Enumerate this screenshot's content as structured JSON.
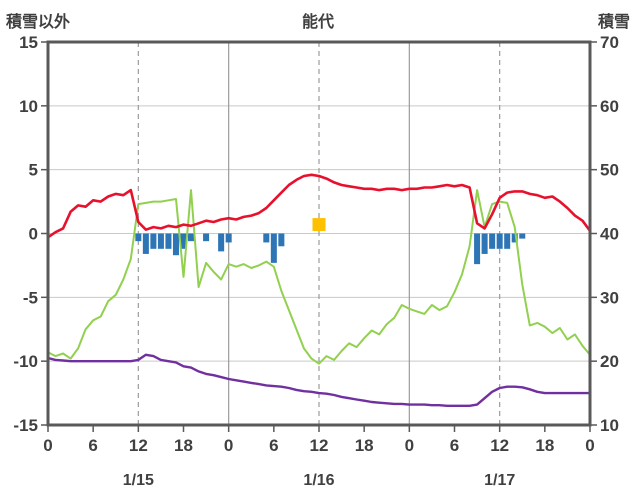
{
  "header": {
    "left_label": "積雪以外",
    "title": "能代",
    "right_label": "積雪"
  },
  "chart_data": {
    "type": "line+bar",
    "title": "能代",
    "left_axis": {
      "label": "積雪以外",
      "min": -15,
      "max": 15,
      "ticks": [
        15,
        10,
        5,
        0,
        -5,
        -10,
        -15
      ]
    },
    "right_axis": {
      "label": "積雪",
      "min": 10,
      "max": 70,
      "ticks": [
        70,
        60,
        50,
        40,
        30,
        20,
        10
      ]
    },
    "x_axis": {
      "min": 0,
      "max": 72,
      "tick_hours": [
        0,
        6,
        12,
        18,
        24,
        30,
        36,
        42,
        48,
        54,
        60,
        66,
        72
      ],
      "tick_labels": [
        "0",
        "6",
        "12",
        "18",
        "0",
        "6",
        "12",
        "18",
        "0",
        "6",
        "12",
        "18",
        "0"
      ],
      "grid_dashed_hours": [
        12,
        36,
        60
      ],
      "grid_solid_hours": [
        24,
        48
      ],
      "date_labels": [
        {
          "label": "1/15",
          "hour": 12
        },
        {
          "label": "1/16",
          "hour": 36
        },
        {
          "label": "1/17",
          "hour": 60
        }
      ]
    },
    "style": {
      "text_color": "#404040",
      "grid_color": "#c9c9c9",
      "vgrid_color": "#9b9b9b",
      "border_color": "#595959",
      "background": "#ffffff"
    },
    "series": [
      {
        "name": "red-line",
        "color": "#e8112d",
        "axis": "left",
        "width": 2.6,
        "x_step": 1,
        "values": [
          -0.3,
          0.1,
          0.4,
          1.7,
          2.2,
          2.1,
          2.6,
          2.5,
          2.9,
          3.1,
          3.0,
          3.4,
          0.9,
          0.3,
          0.5,
          0.4,
          0.6,
          0.5,
          0.7,
          0.6,
          0.8,
          1.0,
          0.9,
          1.1,
          1.2,
          1.1,
          1.3,
          1.4,
          1.6,
          2.0,
          2.6,
          3.2,
          3.8,
          4.2,
          4.5,
          4.6,
          4.5,
          4.3,
          4.0,
          3.8,
          3.7,
          3.6,
          3.5,
          3.5,
          3.4,
          3.5,
          3.5,
          3.4,
          3.5,
          3.5,
          3.6,
          3.6,
          3.7,
          3.8,
          3.7,
          3.8,
          3.6,
          0.8,
          0.4,
          1.5,
          2.8,
          3.2,
          3.3,
          3.3,
          3.1,
          3.0,
          2.8,
          2.9,
          2.5,
          2.0,
          1.4,
          1.0,
          0.2
        ]
      },
      {
        "name": "green-line",
        "color": "#92d050",
        "axis": "left",
        "width": 2,
        "x_step": 1,
        "values": [
          -9.3,
          -9.6,
          -9.4,
          -9.8,
          -9.0,
          -7.5,
          -6.8,
          -6.5,
          -5.3,
          -4.8,
          -3.6,
          -2.0,
          2.3,
          2.4,
          2.5,
          2.5,
          2.6,
          2.7,
          -3.4,
          3.4,
          -4.2,
          -2.3,
          -3.0,
          -3.6,
          -2.4,
          -2.6,
          -2.4,
          -2.7,
          -2.5,
          -2.2,
          -2.6,
          -4.5,
          -6.0,
          -7.5,
          -9.0,
          -9.8,
          -10.2,
          -9.6,
          -9.9,
          -9.2,
          -8.6,
          -8.9,
          -8.2,
          -7.6,
          -7.9,
          -7.1,
          -6.6,
          -5.6,
          -5.9,
          -6.1,
          -6.3,
          -5.6,
          -6.0,
          -5.7,
          -4.6,
          -3.2,
          -1.0,
          3.4,
          0.5,
          2.3,
          2.5,
          2.4,
          0.5,
          -4.0,
          -7.2,
          -7.0,
          -7.3,
          -7.8,
          -7.4,
          -8.3,
          -7.9,
          -8.8,
          -9.5
        ]
      },
      {
        "name": "purple-line",
        "color": "#7030a0",
        "axis": "right",
        "width": 2.4,
        "x_step": 1,
        "values": [
          20.5,
          20.2,
          20.1,
          20.0,
          20.0,
          20.0,
          20.0,
          20.0,
          20.0,
          20.0,
          20.0,
          20.0,
          20.2,
          21.0,
          20.8,
          20.2,
          20.0,
          19.8,
          19.2,
          19.0,
          18.4,
          18.0,
          17.8,
          17.5,
          17.2,
          17.0,
          16.8,
          16.6,
          16.4,
          16.2,
          16.1,
          16.0,
          15.8,
          15.5,
          15.3,
          15.2,
          15.0,
          14.9,
          14.7,
          14.4,
          14.2,
          14.0,
          13.8,
          13.6,
          13.5,
          13.4,
          13.3,
          13.3,
          13.2,
          13.2,
          13.2,
          13.1,
          13.1,
          13.0,
          13.0,
          13.0,
          13.0,
          13.2,
          14.2,
          15.2,
          15.8,
          16.0,
          16.0,
          15.9,
          15.6,
          15.2,
          15.0,
          15.0,
          15.0,
          15.0,
          15.0,
          15.0,
          15.0
        ]
      }
    ],
    "bars": {
      "name": "blue-bars",
      "color": "#2e75b6",
      "axis": "left",
      "width_hours": 0.8,
      "points": [
        {
          "x": 12,
          "value": -0.6
        },
        {
          "x": 13,
          "value": -1.6
        },
        {
          "x": 14,
          "value": -1.2
        },
        {
          "x": 15,
          "value": -1.2
        },
        {
          "x": 16,
          "value": -1.2
        },
        {
          "x": 17,
          "value": -1.7
        },
        {
          "x": 18,
          "value": -1.2
        },
        {
          "x": 19,
          "value": -0.6
        },
        {
          "x": 21,
          "value": -0.6
        },
        {
          "x": 23,
          "value": -1.4
        },
        {
          "x": 24,
          "value": -0.7
        },
        {
          "x": 29,
          "value": -0.7
        },
        {
          "x": 30,
          "value": -2.3
        },
        {
          "x": 31,
          "value": -1.0
        },
        {
          "x": 57,
          "value": -2.4
        },
        {
          "x": 58,
          "value": -1.6
        },
        {
          "x": 59,
          "value": -1.2
        },
        {
          "x": 60,
          "value": -1.2
        },
        {
          "x": 61,
          "value": -1.2
        },
        {
          "x": 62,
          "value": -0.7
        },
        {
          "x": 63,
          "value": -0.4
        }
      ]
    },
    "marker": {
      "name": "orange-square",
      "color": "#ffc000",
      "axis": "left",
      "x": 36,
      "value": 0.7,
      "size": 13
    }
  }
}
